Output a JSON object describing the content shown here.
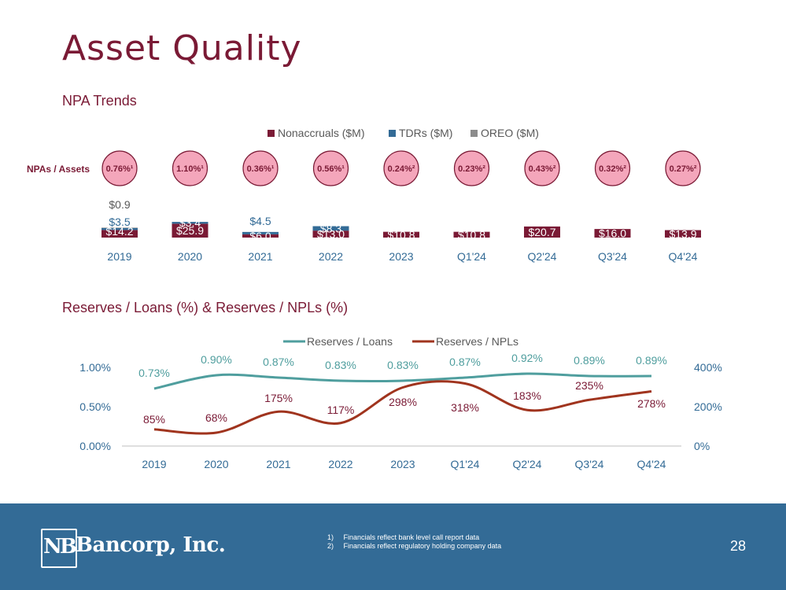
{
  "title": "Asset Quality",
  "chart_data": [
    {
      "type": "bar",
      "stacked": true,
      "title": "NPA Trends",
      "categories": [
        "2019",
        "2020",
        "2021",
        "2022",
        "2023",
        "Q1'24",
        "Q2'24",
        "Q3'24",
        "Q4'24"
      ],
      "series": [
        {
          "name": "Nonaccruals ($M)",
          "color": "#7a1a35",
          "values": [
            14.2,
            25.9,
            6.0,
            13.0,
            10.8,
            10.8,
            20.7,
            16.0,
            13.9
          ],
          "labels": [
            "$14.2",
            "$25.9",
            "$6.0",
            "$13.0",
            "$10.8",
            "$10.8",
            "$20.7",
            "$16.0",
            "$13.9"
          ]
        },
        {
          "name": "TDRs ($M)",
          "color": "#336b96",
          "values": [
            3.5,
            3.4,
            4.5,
            8.3,
            0,
            0,
            0,
            0,
            0
          ],
          "labels": [
            "$3.5",
            "$3.4",
            "$4.5",
            "$8.3",
            "",
            "",
            "",
            "",
            ""
          ]
        },
        {
          "name": "OREO ($M)",
          "color": "#8c8c8c",
          "values": [
            0.9,
            0,
            0,
            0,
            0,
            0,
            0,
            0,
            0
          ],
          "labels": [
            "$0.9",
            "",
            "",
            "",
            "",
            "",
            "",
            "",
            ""
          ]
        }
      ],
      "legend_position": "top",
      "ratio_label": "NPAs / Assets",
      "ratios": [
        "0.76%¹",
        "1.10%¹",
        "0.36%¹",
        "0.56%¹",
        "0.24%²",
        "0.23%²",
        "0.43%²",
        "0.32%²",
        "0.27%²"
      ]
    },
    {
      "type": "line",
      "title": "Reserves / Loans (%) & Reserves / NPLs (%)",
      "x": [
        "2019",
        "2020",
        "2021",
        "2022",
        "2023",
        "Q1'24",
        "Q2'24",
        "Q3'24",
        "Q4'24"
      ],
      "y_left_ticks": [
        "0.00%",
        "0.50%",
        "1.00%"
      ],
      "y_left_lim": [
        0,
        1.0
      ],
      "y_right_ticks": [
        "0%",
        "200%",
        "400%"
      ],
      "y_right_lim": [
        0,
        400
      ],
      "legend_position": "top",
      "series": [
        {
          "name": "Reserves / Loans",
          "axis": "left",
          "color": "#4f9e9e",
          "values": [
            0.73,
            0.9,
            0.87,
            0.83,
            0.83,
            0.87,
            0.92,
            0.89,
            0.89
          ],
          "labels": [
            "0.73%",
            "0.90%",
            "0.87%",
            "0.83%",
            "0.83%",
            "0.87%",
            "0.92%",
            "0.89%",
            "0.89%"
          ]
        },
        {
          "name": "Reserves / NPLs",
          "axis": "right",
          "color": "#a0341e",
          "values": [
            85,
            68,
            175,
            117,
            298,
            318,
            183,
            235,
            278
          ],
          "labels": [
            "85%",
            "68%",
            "175%",
            "117%",
            "298%",
            "318%",
            "183%",
            "235%",
            "278%"
          ]
        }
      ]
    }
  ],
  "footer": {
    "logo_mark": "NB",
    "logo_text": "Bancorp, Inc.",
    "notes": [
      "1)     Financials reflect bank level call report data",
      "2)     Financials reflect regulatory holding company data"
    ],
    "page_number": "28"
  }
}
